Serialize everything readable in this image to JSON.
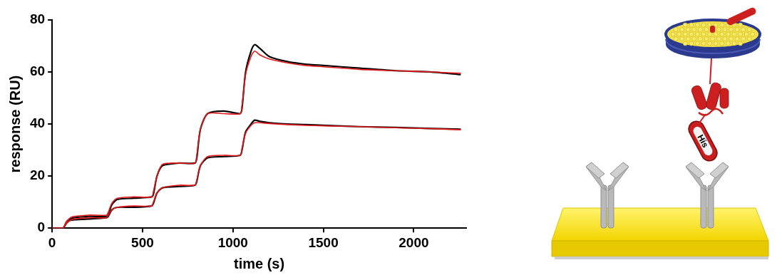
{
  "chart_data": {
    "type": "line",
    "x_label": "time (s)",
    "y_label": "response (RU)",
    "x": [
      0,
      60,
      80,
      100,
      120,
      200,
      300,
      310,
      330,
      360,
      450,
      550,
      560,
      580,
      610,
      700,
      790,
      800,
      820,
      860,
      950,
      1040,
      1050,
      1070,
      1100,
      1120,
      1150,
      1200,
      1300,
      1400,
      1500,
      1700,
      1900,
      2100,
      2260
    ],
    "series": [
      {
        "color": "#000000",
        "values": [
          0,
          0,
          2.5,
          3.5,
          4,
          4.5,
          4.5,
          5,
          9,
          11,
          11.5,
          12,
          13,
          20,
          24,
          25,
          25,
          27,
          38,
          44,
          45,
          44,
          46,
          60,
          68,
          70.5,
          69,
          66,
          64,
          63,
          62.5,
          61.5,
          60.5,
          60,
          59
        ]
      },
      {
        "color": "#000000",
        "values": [
          0,
          0,
          2,
          3,
          3.2,
          3.5,
          4,
          4.5,
          7,
          8,
          8,
          8.5,
          9.5,
          13.5,
          15.5,
          16,
          16.5,
          18,
          24,
          27,
          27.5,
          28,
          30,
          37,
          40,
          41.5,
          41,
          40.5,
          40,
          39.8,
          39.5,
          39,
          38.7,
          38.3,
          38
        ]
      },
      {
        "color": "#e41a1c",
        "values": [
          0,
          0,
          2.5,
          4,
          4.5,
          5,
          5,
          6,
          9.5,
          11.5,
          12,
          12,
          14,
          20,
          24.5,
          25,
          25,
          28,
          38,
          44,
          44,
          44,
          47,
          59,
          66,
          68,
          66.5,
          65,
          63.5,
          62.5,
          62,
          61,
          60.5,
          60,
          59.5
        ]
      },
      {
        "color": "#e41a1c",
        "values": [
          0,
          0,
          2,
          3,
          3.5,
          4,
          4,
          5,
          7,
          8,
          8.5,
          8.5,
          10,
          13.5,
          15.5,
          16.5,
          16.5,
          18.5,
          24,
          27.5,
          28,
          28,
          30.5,
          36.5,
          39.5,
          40.5,
          40.5,
          40.2,
          39.8,
          39.5,
          39.3,
          39,
          38.6,
          38.2,
          37.8
        ]
      }
    ],
    "xlim": [
      0,
      2290
    ],
    "xticks": [
      0,
      500,
      1000,
      1500,
      2000
    ],
    "ylim": [
      0,
      80
    ],
    "yticks": [
      0,
      20,
      40,
      60,
      80
    ],
    "grid": false
  },
  "diagram": {
    "tag_label": "His"
  }
}
